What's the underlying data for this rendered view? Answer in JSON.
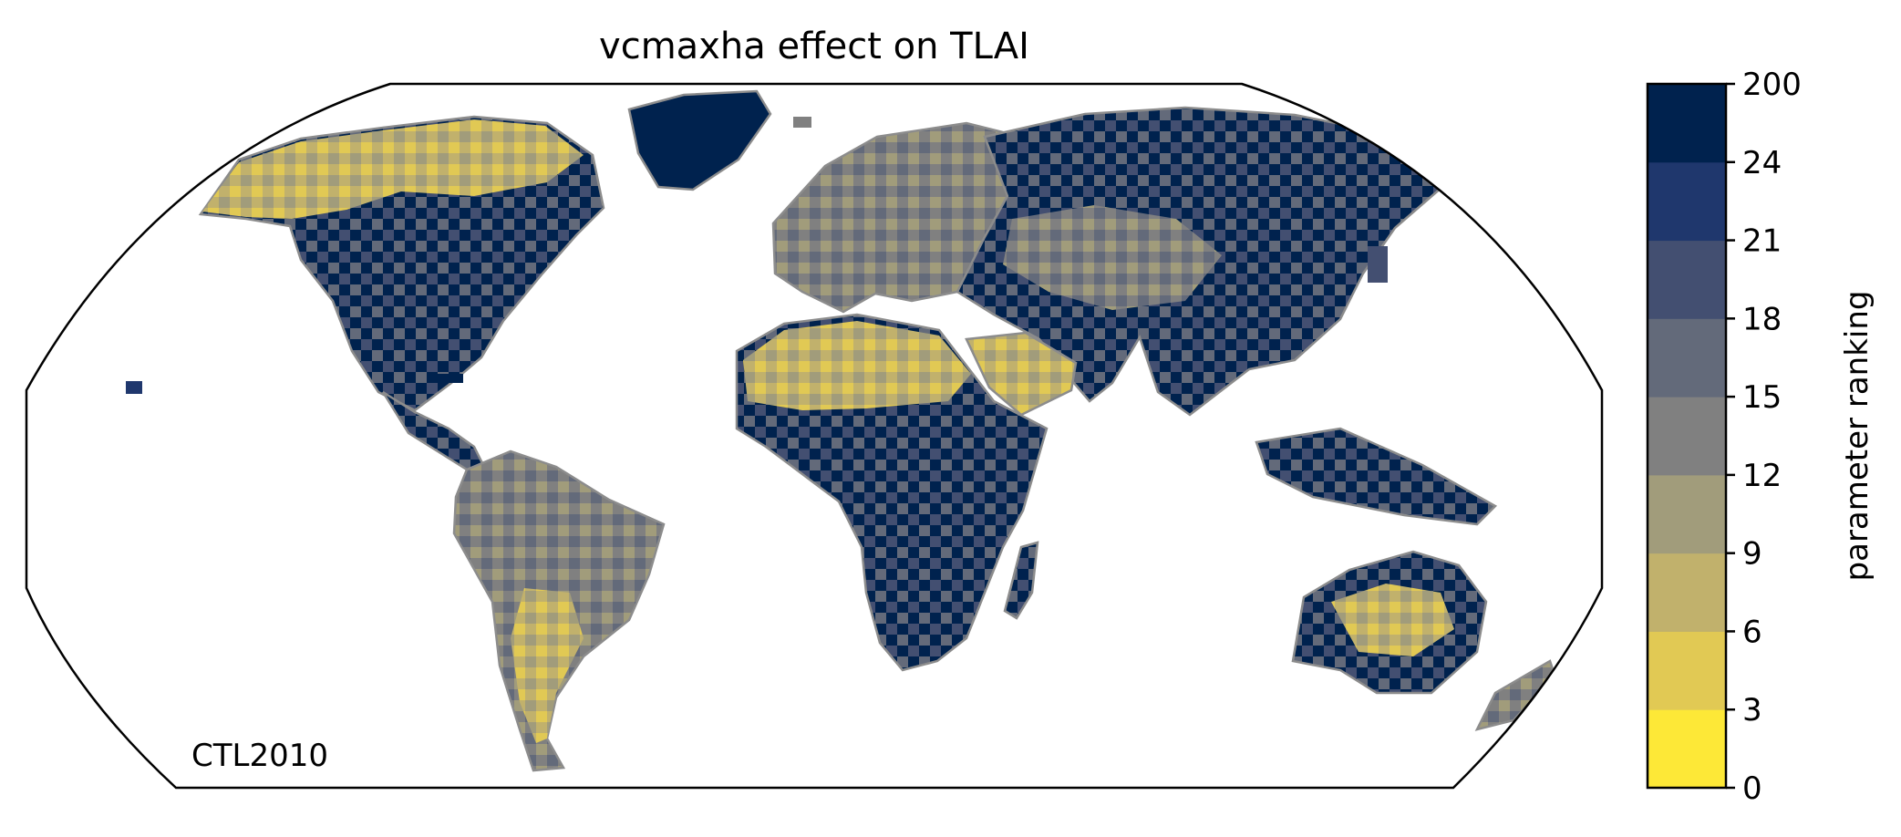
{
  "title": "vcmaxha effect on TLAI",
  "corner_label": "CTL2010",
  "colorbar": {
    "label": "parameter ranking",
    "ticks": [
      "0",
      "3",
      "6",
      "9",
      "12",
      "15",
      "18",
      "21",
      "24",
      "200"
    ],
    "colors": [
      "#fde837",
      "#e1c954",
      "#c1b16c",
      "#a19c7b",
      "#808080",
      "#636a7a",
      "#434f71",
      "#1f376d",
      "#00224e"
    ]
  },
  "map": {
    "projection": "Robinson",
    "coastline_color": "#8c8c8c",
    "ocean_color": "#ffffff"
  }
}
